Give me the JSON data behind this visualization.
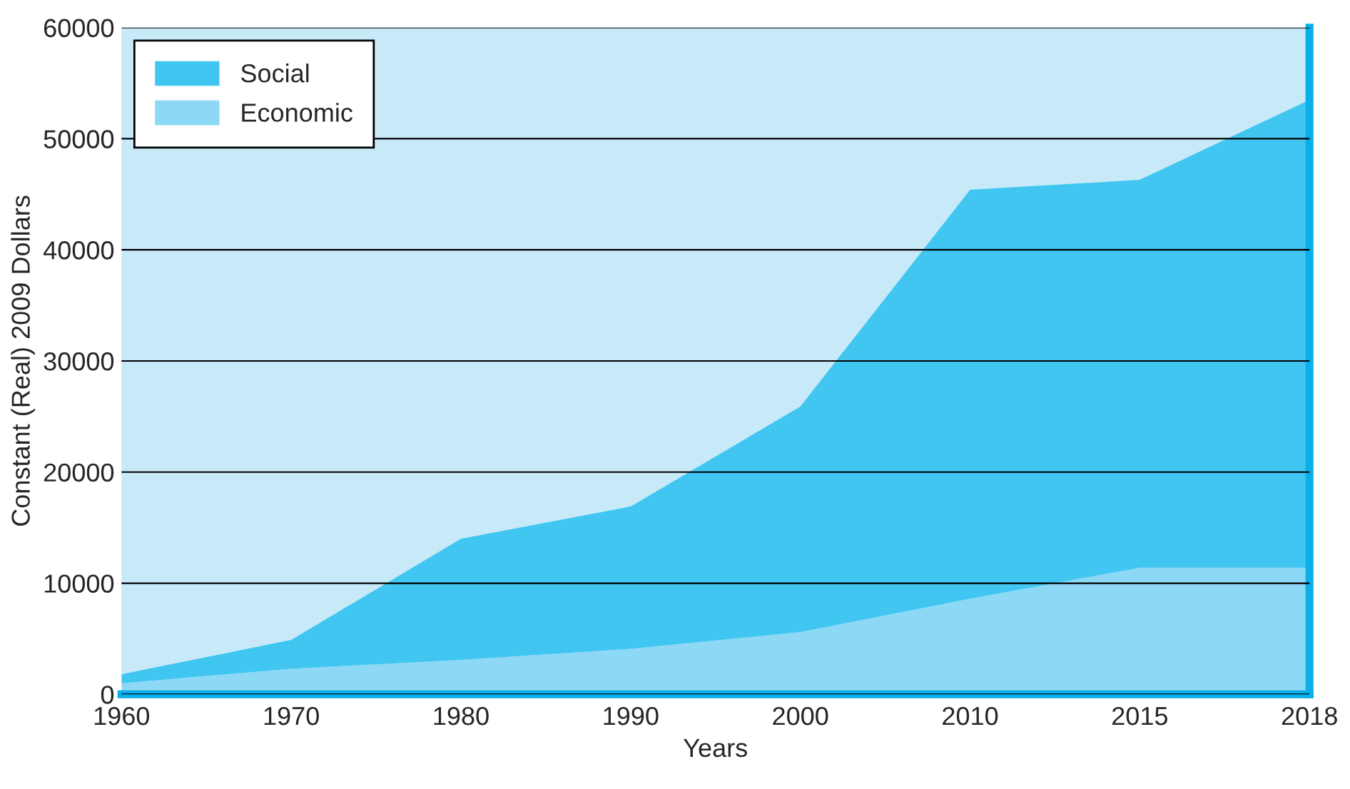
{
  "chart_data": {
    "type": "area",
    "stacked": true,
    "xlabel": "Years",
    "ylabel": "Constant (Real) 2009 Dollars",
    "categories": [
      "1960",
      "1970",
      "1980",
      "1990",
      "2000",
      "2010",
      "2015",
      "2018"
    ],
    "series": [
      {
        "name": "Economic",
        "color": "#8dd8f5",
        "values": [
          1000,
          2300,
          3100,
          4100,
          5600,
          8600,
          11400,
          11400
        ]
      },
      {
        "name": "Social",
        "color": "#41c6f2",
        "values": [
          800,
          2600,
          10900,
          12800,
          20300,
          36800,
          34900,
          42100
        ]
      }
    ],
    "ylim": [
      0,
      60000
    ],
    "yticks": [
      0,
      10000,
      20000,
      30000,
      40000,
      50000,
      60000
    ],
    "grid": "y",
    "legend": "top left"
  }
}
